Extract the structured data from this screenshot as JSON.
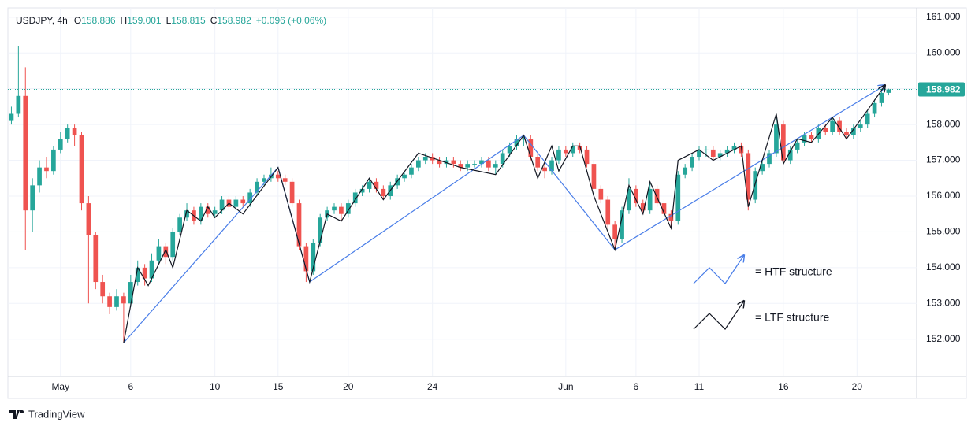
{
  "chart_data": {
    "type": "candlestick",
    "header": {
      "symbol": "USDJPY, 4h",
      "ohlc": [
        {
          "label": "O",
          "value": "158.886"
        },
        {
          "label": "H",
          "value": "159.001"
        },
        {
          "label": "L",
          "value": "158.815"
        },
        {
          "label": "C",
          "value": "158.982"
        }
      ],
      "change": "+0.096 (+0.06%)"
    },
    "up_color": "#26a69a",
    "down_color": "#ef5350",
    "candles": [
      [
        158.1,
        158.5,
        158.0,
        158.3
      ],
      [
        158.3,
        160.2,
        158.2,
        158.8
      ],
      [
        158.8,
        159.6,
        154.5,
        155.6
      ],
      [
        155.6,
        156.5,
        155.0,
        156.3
      ],
      [
        156.3,
        157.0,
        156.1,
        156.8
      ],
      [
        156.8,
        157.1,
        156.5,
        156.7
      ],
      [
        156.7,
        157.4,
        156.6,
        157.3
      ],
      [
        157.3,
        157.8,
        157.2,
        157.6
      ],
      [
        157.6,
        158.0,
        157.5,
        157.9
      ],
      [
        157.9,
        158.0,
        157.4,
        157.7
      ],
      [
        157.7,
        157.8,
        155.6,
        155.8
      ],
      [
        155.8,
        156.0,
        153.0,
        154.9
      ],
      [
        154.9,
        155.0,
        153.4,
        153.6
      ],
      [
        153.6,
        153.8,
        153.0,
        153.2
      ],
      [
        153.2,
        153.3,
        152.7,
        152.9
      ],
      [
        152.9,
        153.4,
        152.8,
        153.2
      ],
      [
        153.2,
        153.3,
        151.9,
        153.0
      ],
      [
        153.0,
        153.8,
        152.9,
        153.6
      ],
      [
        153.6,
        154.2,
        153.5,
        154.0
      ],
      [
        154.0,
        154.1,
        153.5,
        153.7
      ],
      [
        153.7,
        154.4,
        153.6,
        154.2
      ],
      [
        154.2,
        154.8,
        154.1,
        154.6
      ],
      [
        154.6,
        154.7,
        154.1,
        154.3
      ],
      [
        154.3,
        155.1,
        154.2,
        155.0
      ],
      [
        155.0,
        155.5,
        154.9,
        155.4
      ],
      [
        155.4,
        155.8,
        155.3,
        155.6
      ],
      [
        155.6,
        155.7,
        155.2,
        155.3
      ],
      [
        155.3,
        155.8,
        155.2,
        155.7
      ],
      [
        155.7,
        155.8,
        155.4,
        155.5
      ],
      [
        155.5,
        155.7,
        155.4,
        155.6
      ],
      [
        155.6,
        156.0,
        155.5,
        155.9
      ],
      [
        155.9,
        156.0,
        155.6,
        155.7
      ],
      [
        155.7,
        156.0,
        155.6,
        155.9
      ],
      [
        155.9,
        156.0,
        155.7,
        155.8
      ],
      [
        155.8,
        156.2,
        155.7,
        156.1
      ],
      [
        156.1,
        156.5,
        156.0,
        156.4
      ],
      [
        156.4,
        156.6,
        156.3,
        156.5
      ],
      [
        156.5,
        156.8,
        156.4,
        156.6
      ],
      [
        156.6,
        156.7,
        156.4,
        156.5
      ],
      [
        156.5,
        156.6,
        156.3,
        156.4
      ],
      [
        156.4,
        156.5,
        155.7,
        155.8
      ],
      [
        155.8,
        155.9,
        154.5,
        154.6
      ],
      [
        154.6,
        154.7,
        153.6,
        153.9
      ],
      [
        153.9,
        154.8,
        153.8,
        154.7
      ],
      [
        154.7,
        155.5,
        154.6,
        155.4
      ],
      [
        155.4,
        155.7,
        155.3,
        155.6
      ],
      [
        155.6,
        155.8,
        155.5,
        155.7
      ],
      [
        155.7,
        155.8,
        155.3,
        155.5
      ],
      [
        155.5,
        155.9,
        155.4,
        155.8
      ],
      [
        155.8,
        156.2,
        155.7,
        156.1
      ],
      [
        156.1,
        156.3,
        156.0,
        156.2
      ],
      [
        156.2,
        156.5,
        156.1,
        156.4
      ],
      [
        156.4,
        156.5,
        156.1,
        156.2
      ],
      [
        156.2,
        156.3,
        155.9,
        156.0
      ],
      [
        156.0,
        156.4,
        155.9,
        156.3
      ],
      [
        156.3,
        156.6,
        156.2,
        156.5
      ],
      [
        156.5,
        156.7,
        156.4,
        156.6
      ],
      [
        156.6,
        156.9,
        156.5,
        156.8
      ],
      [
        156.8,
        157.1,
        156.7,
        157.0
      ],
      [
        157.0,
        157.2,
        156.9,
        157.1
      ],
      [
        157.1,
        157.2,
        156.9,
        157.0
      ],
      [
        157.0,
        157.1,
        156.8,
        156.9
      ],
      [
        156.9,
        157.1,
        156.8,
        157.0
      ],
      [
        157.0,
        157.1,
        156.8,
        156.9
      ],
      [
        156.9,
        157.0,
        156.7,
        156.8
      ],
      [
        156.8,
        157.0,
        156.7,
        156.9
      ],
      [
        156.9,
        157.0,
        156.8,
        156.9
      ],
      [
        156.9,
        157.1,
        156.8,
        157.0
      ],
      [
        157.0,
        157.1,
        156.7,
        156.8
      ],
      [
        156.8,
        157.0,
        156.6,
        156.9
      ],
      [
        156.9,
        157.3,
        156.8,
        157.2
      ],
      [
        157.2,
        157.5,
        157.1,
        157.4
      ],
      [
        157.4,
        157.7,
        157.3,
        157.6
      ],
      [
        157.6,
        157.7,
        157.4,
        157.6
      ],
      [
        157.6,
        157.7,
        157.0,
        157.1
      ],
      [
        157.1,
        157.2,
        156.7,
        156.8
      ],
      [
        156.8,
        156.9,
        156.5,
        156.7
      ],
      [
        156.7,
        157.1,
        156.6,
        157.0
      ],
      [
        157.0,
        157.4,
        156.9,
        157.3
      ],
      [
        157.3,
        157.4,
        157.1,
        157.2
      ],
      [
        157.2,
        157.5,
        157.1,
        157.4
      ],
      [
        157.4,
        157.5,
        157.2,
        157.3
      ],
      [
        157.3,
        157.4,
        156.8,
        156.9
      ],
      [
        156.9,
        157.0,
        156.1,
        156.2
      ],
      [
        156.2,
        156.3,
        155.8,
        155.9
      ],
      [
        155.9,
        156.0,
        155.1,
        155.2
      ],
      [
        155.2,
        155.3,
        154.5,
        154.8
      ],
      [
        154.8,
        155.7,
        154.7,
        155.6
      ],
      [
        155.6,
        156.5,
        155.5,
        156.2
      ],
      [
        156.2,
        156.3,
        155.7,
        155.8
      ],
      [
        155.8,
        155.9,
        155.5,
        155.6
      ],
      [
        155.6,
        156.4,
        155.5,
        156.2
      ],
      [
        156.2,
        156.3,
        155.7,
        155.8
      ],
      [
        155.8,
        155.9,
        155.4,
        155.5
      ],
      [
        155.5,
        155.6,
        155.1,
        155.3
      ],
      [
        155.3,
        156.7,
        155.2,
        156.6
      ],
      [
        156.6,
        156.9,
        156.5,
        156.8
      ],
      [
        156.8,
        157.2,
        156.7,
        157.1
      ],
      [
        157.1,
        157.4,
        157.0,
        157.3
      ],
      [
        157.3,
        157.4,
        157.1,
        157.3
      ],
      [
        157.3,
        157.4,
        157.0,
        157.1
      ],
      [
        157.1,
        157.3,
        157.0,
        157.2
      ],
      [
        157.2,
        157.4,
        157.1,
        157.3
      ],
      [
        157.3,
        157.5,
        157.2,
        157.4
      ],
      [
        157.4,
        157.5,
        157.1,
        157.2
      ],
      [
        157.2,
        157.3,
        155.6,
        155.9
      ],
      [
        155.9,
        156.8,
        155.8,
        156.7
      ],
      [
        156.7,
        157.0,
        156.6,
        156.9
      ],
      [
        156.9,
        157.3,
        156.8,
        157.2
      ],
      [
        157.2,
        158.3,
        157.1,
        158.0
      ],
      [
        158.0,
        158.1,
        156.9,
        157.0
      ],
      [
        157.0,
        157.4,
        156.9,
        157.3
      ],
      [
        157.3,
        157.6,
        157.2,
        157.5
      ],
      [
        157.5,
        157.8,
        157.4,
        157.7
      ],
      [
        157.7,
        157.8,
        157.5,
        157.6
      ],
      [
        157.6,
        158.0,
        157.5,
        157.9
      ],
      [
        157.9,
        158.0,
        157.7,
        157.8
      ],
      [
        157.8,
        158.2,
        157.7,
        158.1
      ],
      [
        158.1,
        158.2,
        157.7,
        157.8
      ],
      [
        157.8,
        157.9,
        157.6,
        157.7
      ],
      [
        157.7,
        158.0,
        157.6,
        157.9
      ],
      [
        157.9,
        158.1,
        157.8,
        158.0
      ],
      [
        158.0,
        158.4,
        157.9,
        158.3
      ],
      [
        158.3,
        158.7,
        158.2,
        158.6
      ],
      [
        158.6,
        159.0,
        158.5,
        158.886
      ],
      [
        158.886,
        159.001,
        158.815,
        158.982
      ]
    ],
    "last_price_label": "158.982",
    "xlim": [
      -0.5,
      129
    ],
    "xticks": [
      {
        "value": 7,
        "label": "May"
      },
      {
        "value": 17,
        "label": "6"
      },
      {
        "value": 29,
        "label": "10"
      },
      {
        "value": 38,
        "label": "15"
      },
      {
        "value": 48,
        "label": "20"
      },
      {
        "value": 60,
        "label": "24"
      },
      {
        "value": 79,
        "label": "Jun"
      },
      {
        "value": 89,
        "label": "6"
      },
      {
        "value": 98,
        "label": "11"
      },
      {
        "value": 110,
        "label": "16"
      },
      {
        "value": 120.5,
        "label": "20"
      }
    ],
    "ylim": [
      150.96,
      161.26
    ],
    "yticks": [
      {
        "value": 152,
        "label": "152.000"
      },
      {
        "value": 153,
        "label": "153.000"
      },
      {
        "value": 154,
        "label": "154.000"
      },
      {
        "value": 155,
        "label": "155.000"
      },
      {
        "value": 156,
        "label": "156.000"
      },
      {
        "value": 157,
        "label": "157.000"
      },
      {
        "value": 158,
        "label": "158.000"
      },
      {
        "value": 159,
        "label": "159.000"
      },
      {
        "value": 160,
        "label": "160.000"
      },
      {
        "value": 161,
        "label": "161.000"
      }
    ],
    "grid": true,
    "structures": [
      {
        "name": "= HTF structure",
        "color": "#4a7ee8",
        "points": [
          [
            16,
            151.9
          ],
          [
            38,
            156.8
          ],
          [
            42.5,
            153.6
          ],
          [
            73,
            157.7
          ],
          [
            86,
            154.5
          ],
          [
            124.5,
            159.1
          ]
        ]
      },
      {
        "name": "= LTF structure",
        "color": "#131722",
        "points": [
          [
            16,
            151.9
          ],
          [
            18,
            154.0
          ],
          [
            19.5,
            153.5
          ],
          [
            22,
            154.5
          ],
          [
            23,
            154.0
          ],
          [
            25,
            155.6
          ],
          [
            27,
            155.3
          ],
          [
            28,
            155.7
          ],
          [
            29,
            155.4
          ],
          [
            31,
            155.8
          ],
          [
            33,
            155.5
          ],
          [
            38,
            156.8
          ],
          [
            42.5,
            153.6
          ],
          [
            45,
            155.5
          ],
          [
            47,
            155.3
          ],
          [
            51,
            156.5
          ],
          [
            53,
            155.9
          ],
          [
            58,
            157.2
          ],
          [
            64,
            156.8
          ],
          [
            69,
            156.6
          ],
          [
            73,
            157.7
          ],
          [
            75,
            156.5
          ],
          [
            77,
            157.4
          ],
          [
            78,
            156.7
          ],
          [
            80,
            157.4
          ],
          [
            81,
            157.4
          ],
          [
            83,
            156.0
          ],
          [
            86,
            154.5
          ],
          [
            88,
            156.3
          ],
          [
            90,
            155.5
          ],
          [
            91,
            156.4
          ],
          [
            94,
            155.1
          ],
          [
            95,
            157.0
          ],
          [
            98,
            157.3
          ],
          [
            100,
            157.0
          ],
          [
            104,
            157.4
          ],
          [
            105,
            155.7
          ],
          [
            109,
            158.3
          ],
          [
            110,
            156.9
          ],
          [
            112,
            157.6
          ],
          [
            114,
            157.5
          ],
          [
            117,
            158.2
          ],
          [
            119,
            157.6
          ],
          [
            122,
            158.4
          ],
          [
            124.5,
            159.1
          ]
        ]
      }
    ],
    "brand": "TradingView"
  }
}
